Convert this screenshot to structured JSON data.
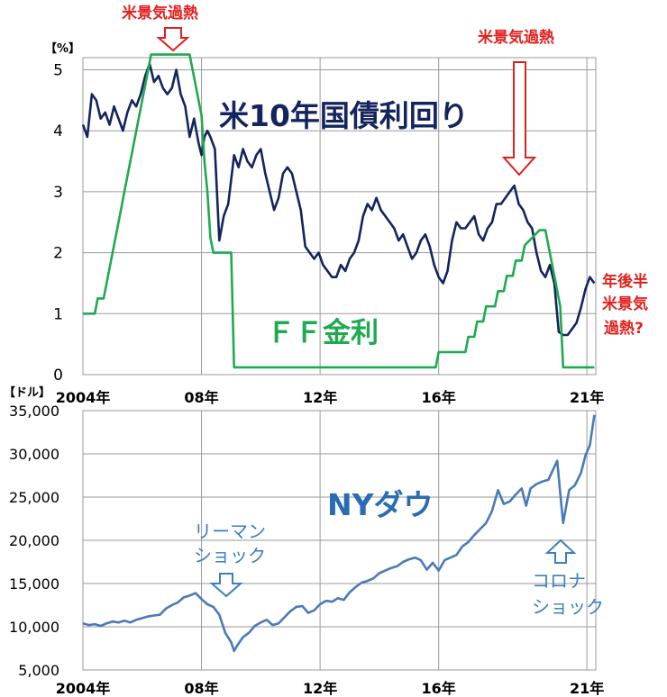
{
  "chart_data": [
    {
      "type": "line",
      "yunit": "【%】",
      "ylim": [
        0,
        5.2
      ],
      "yticks": [
        "0",
        "1",
        "2",
        "3",
        "4",
        "5"
      ],
      "yticks_values": [
        0,
        1,
        2,
        3,
        4,
        5
      ],
      "xticks": [
        "2004年",
        "08年",
        "12年",
        "16年",
        "21年"
      ],
      "xticks_values": [
        2004,
        2008,
        2012,
        2016,
        2021
      ],
      "xlim": [
        2004,
        2021.3
      ],
      "grid": true,
      "series": [
        {
          "name": "米10年国債利回り",
          "color": "#14245e",
          "x": [
            2004.0,
            2004.15,
            2004.3,
            2004.45,
            2004.6,
            2004.75,
            2004.9,
            2005.05,
            2005.2,
            2005.35,
            2005.5,
            2005.65,
            2005.8,
            2005.95,
            2006.1,
            2006.25,
            2006.4,
            2006.55,
            2006.7,
            2006.85,
            2007.0,
            2007.15,
            2007.3,
            2007.45,
            2007.6,
            2007.75,
            2007.9,
            2008.0,
            2008.1,
            2008.2,
            2008.3,
            2008.45,
            2008.6,
            2008.75,
            2008.9,
            2009.0,
            2009.1,
            2009.25,
            2009.4,
            2009.55,
            2009.7,
            2009.85,
            2010.0,
            2010.15,
            2010.3,
            2010.45,
            2010.6,
            2010.75,
            2010.9,
            2011.05,
            2011.2,
            2011.35,
            2011.5,
            2011.65,
            2011.8,
            2011.95,
            2012.1,
            2012.25,
            2012.4,
            2012.55,
            2012.7,
            2012.85,
            2013.0,
            2013.15,
            2013.3,
            2013.45,
            2013.6,
            2013.75,
            2013.9,
            2014.05,
            2014.2,
            2014.35,
            2014.5,
            2014.65,
            2014.8,
            2014.95,
            2015.1,
            2015.25,
            2015.4,
            2015.55,
            2015.7,
            2015.85,
            2016.0,
            2016.15,
            2016.3,
            2016.45,
            2016.6,
            2016.75,
            2016.9,
            2017.05,
            2017.2,
            2017.35,
            2017.5,
            2017.65,
            2017.8,
            2017.95,
            2018.1,
            2018.25,
            2018.4,
            2018.55,
            2018.7,
            2018.85,
            2019.0,
            2019.15,
            2019.3,
            2019.45,
            2019.6,
            2019.75,
            2019.9,
            2020.05,
            2020.2,
            2020.35,
            2020.5,
            2020.65,
            2020.8,
            2020.95,
            2021.1,
            2021.25
          ],
          "y": [
            4.1,
            3.9,
            4.6,
            4.5,
            4.2,
            4.3,
            4.1,
            4.4,
            4.2,
            4.0,
            4.3,
            4.5,
            4.4,
            4.6,
            4.9,
            5.1,
            4.8,
            4.9,
            4.7,
            4.6,
            4.7,
            5.0,
            4.6,
            4.4,
            3.9,
            4.2,
            3.8,
            3.6,
            3.9,
            4.0,
            3.9,
            3.7,
            2.2,
            2.6,
            2.8,
            3.2,
            3.6,
            3.4,
            3.7,
            3.5,
            3.4,
            3.6,
            3.7,
            3.3,
            3.0,
            2.7,
            2.9,
            3.3,
            3.4,
            3.3,
            3.0,
            2.7,
            2.1,
            2.0,
            1.9,
            2.0,
            1.8,
            1.7,
            1.6,
            1.6,
            1.8,
            1.7,
            1.9,
            2.0,
            2.2,
            2.6,
            2.8,
            2.7,
            2.9,
            2.7,
            2.6,
            2.5,
            2.4,
            2.2,
            2.3,
            2.1,
            1.9,
            2.0,
            2.2,
            2.3,
            2.1,
            1.8,
            1.6,
            1.5,
            1.7,
            2.2,
            2.5,
            2.4,
            2.4,
            2.5,
            2.6,
            2.3,
            2.2,
            2.4,
            2.5,
            2.8,
            2.8,
            2.9,
            3.0,
            3.1,
            2.8,
            2.7,
            2.5,
            2.4,
            2.0,
            1.7,
            1.6,
            1.8,
            1.5,
            0.7,
            0.65,
            0.65,
            0.75,
            0.85,
            1.1,
            1.4,
            1.6,
            1.5
          ],
          "value_label_style": "none"
        },
        {
          "name": "ＦＦ金利",
          "color": "#1faa50",
          "x": [
            2004.0,
            2004.4,
            2004.5,
            2004.7,
            2004.8,
            2004.9,
            2005.0,
            2005.1,
            2005.2,
            2005.3,
            2005.4,
            2005.5,
            2005.6,
            2005.7,
            2005.8,
            2005.9,
            2006.0,
            2006.1,
            2006.2,
            2006.3,
            2006.4,
            2006.5,
            2007.6,
            2007.7,
            2007.8,
            2007.9,
            2008.0,
            2008.1,
            2008.2,
            2008.3,
            2008.4,
            2008.6,
            2009.0,
            2009.1,
            2015.9,
            2016.0,
            2016.9,
            2017.0,
            2017.2,
            2017.3,
            2017.5,
            2017.6,
            2017.9,
            2018.0,
            2018.2,
            2018.3,
            2018.5,
            2018.6,
            2018.8,
            2018.9,
            2019.4,
            2019.5,
            2019.6,
            2019.7,
            2019.8,
            2019.9,
            2020.1,
            2020.2,
            2021.25
          ],
          "y": [
            1.0,
            1.0,
            1.25,
            1.25,
            1.5,
            1.75,
            2.0,
            2.25,
            2.5,
            2.75,
            3.0,
            3.25,
            3.5,
            3.75,
            4.0,
            4.25,
            4.5,
            4.75,
            5.0,
            5.25,
            5.25,
            5.25,
            5.25,
            5.0,
            4.75,
            4.5,
            4.25,
            3.5,
            3.0,
            2.25,
            2.0,
            2.0,
            2.0,
            0.12,
            0.12,
            0.37,
            0.37,
            0.62,
            0.62,
            0.87,
            0.87,
            1.12,
            1.12,
            1.37,
            1.37,
            1.62,
            1.62,
            1.87,
            1.87,
            2.12,
            2.37,
            2.37,
            2.37,
            2.12,
            1.87,
            1.62,
            1.12,
            0.12,
            0.12
          ],
          "value_label_style": "none"
        }
      ],
      "annotations": [
        "米景気過熱",
        "米景気過熱",
        "年後半",
        "米景気",
        "過熱?"
      ]
    },
    {
      "type": "line",
      "yunit": "【ドル】",
      "ylim": [
        5000,
        35000
      ],
      "yticks": [
        "5,000",
        "10,000",
        "15,000",
        "20,000",
        "25,000",
        "30,000",
        "35,000"
      ],
      "yticks_values": [
        5000,
        10000,
        15000,
        20000,
        25000,
        30000,
        35000
      ],
      "xticks": [
        "2004年",
        "08年",
        "12年",
        "16年",
        "21年"
      ],
      "xticks_values": [
        2004,
        2008,
        2012,
        2016,
        2021
      ],
      "xlim": [
        2004,
        2021.3
      ],
      "grid": true,
      "series": [
        {
          "name": "NYダウ",
          "color": "#4a7ab8",
          "x": [
            2004.0,
            2004.2,
            2004.4,
            2004.6,
            2004.8,
            2005.0,
            2005.2,
            2005.4,
            2005.6,
            2005.8,
            2006.0,
            2006.2,
            2006.4,
            2006.6,
            2006.8,
            2007.0,
            2007.2,
            2007.4,
            2007.6,
            2007.8,
            2008.0,
            2008.2,
            2008.4,
            2008.6,
            2008.8,
            2009.0,
            2009.1,
            2009.2,
            2009.4,
            2009.6,
            2009.8,
            2010.0,
            2010.2,
            2010.4,
            2010.6,
            2010.8,
            2011.0,
            2011.2,
            2011.4,
            2011.6,
            2011.8,
            2012.0,
            2012.2,
            2012.4,
            2012.6,
            2012.8,
            2013.0,
            2013.2,
            2013.4,
            2013.6,
            2013.8,
            2014.0,
            2014.2,
            2014.4,
            2014.6,
            2014.8,
            2015.0,
            2015.2,
            2015.4,
            2015.6,
            2015.8,
            2016.0,
            2016.2,
            2016.4,
            2016.6,
            2016.8,
            2017.0,
            2017.2,
            2017.4,
            2017.6,
            2017.8,
            2018.0,
            2018.2,
            2018.4,
            2018.6,
            2018.8,
            2018.95,
            2019.1,
            2019.3,
            2019.5,
            2019.7,
            2019.9,
            2020.0,
            2020.1,
            2020.2,
            2020.4,
            2020.6,
            2020.8,
            2020.95,
            2021.1,
            2021.25
          ],
          "y": [
            10400,
            10200,
            10300,
            10100,
            10400,
            10600,
            10500,
            10700,
            10500,
            10800,
            11000,
            11200,
            11300,
            11400,
            12100,
            12500,
            12800,
            13400,
            13600,
            13900,
            13200,
            12600,
            12300,
            11400,
            9300,
            8200,
            7200,
            7800,
            8800,
            9300,
            10100,
            10500,
            10800,
            10200,
            10400,
            11100,
            11800,
            12300,
            12400,
            11600,
            11900,
            12600,
            13000,
            12900,
            13300,
            13100,
            14000,
            14600,
            15100,
            15300,
            15600,
            16200,
            16500,
            16800,
            17000,
            17500,
            17800,
            18000,
            17700,
            16600,
            17400,
            16500,
            17700,
            18000,
            18300,
            19300,
            19800,
            20600,
            21300,
            22000,
            23400,
            25800,
            24200,
            24500,
            25300,
            26000,
            24000,
            26000,
            26500,
            26800,
            27000,
            28500,
            29200,
            25500,
            22000,
            25800,
            26400,
            27800,
            29800,
            31000,
            34500
          ],
          "value_label_style": "none"
        }
      ],
      "annotations": [
        "リーマン",
        "ショック",
        "コロナ",
        "ショック"
      ]
    }
  ]
}
